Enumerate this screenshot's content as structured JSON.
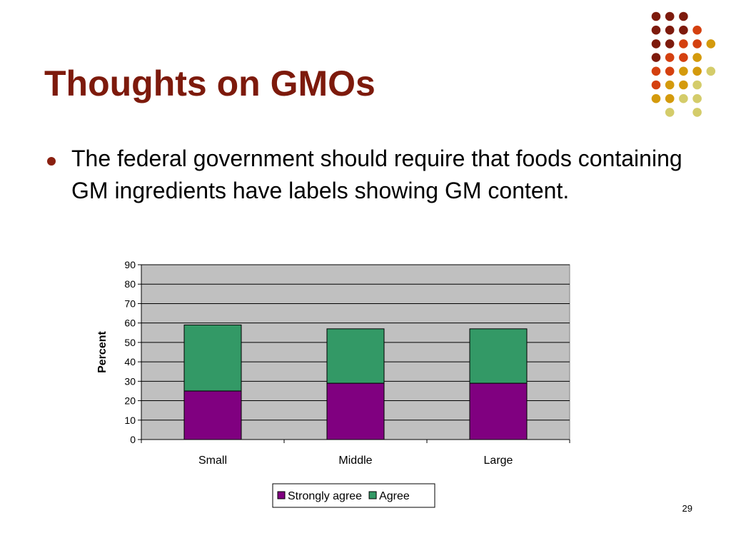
{
  "slide": {
    "title": "Thoughts on GMOs",
    "bullet": "The federal government should require that foods containing GM ingredients have labels showing GM content.",
    "page_number": "29"
  },
  "colors": {
    "title": "#7d1a0c",
    "dot_palette": [
      "#7d1a0c",
      "#d4400f",
      "#d49a0c",
      "#d4cc6a"
    ],
    "plot_background": "#c0c0c0",
    "strongly_agree": "#800080",
    "agree": "#339966"
  },
  "chart_data": {
    "type": "bar",
    "stacked": true,
    "categories": [
      "Small",
      "Middle",
      "Large"
    ],
    "series": [
      {
        "name": "Strongly agree",
        "values": [
          25,
          29,
          29
        ],
        "color": "#800080"
      },
      {
        "name": "Agree",
        "values": [
          34,
          28,
          28
        ],
        "color": "#339966"
      }
    ],
    "title": "",
    "xlabel": "",
    "ylabel": "Percent",
    "ylim": [
      0,
      90
    ],
    "yticks": [
      "0",
      "10",
      "20",
      "30",
      "40",
      "50",
      "60",
      "70",
      "80",
      "90"
    ],
    "grid": true,
    "legend": "bottom"
  }
}
